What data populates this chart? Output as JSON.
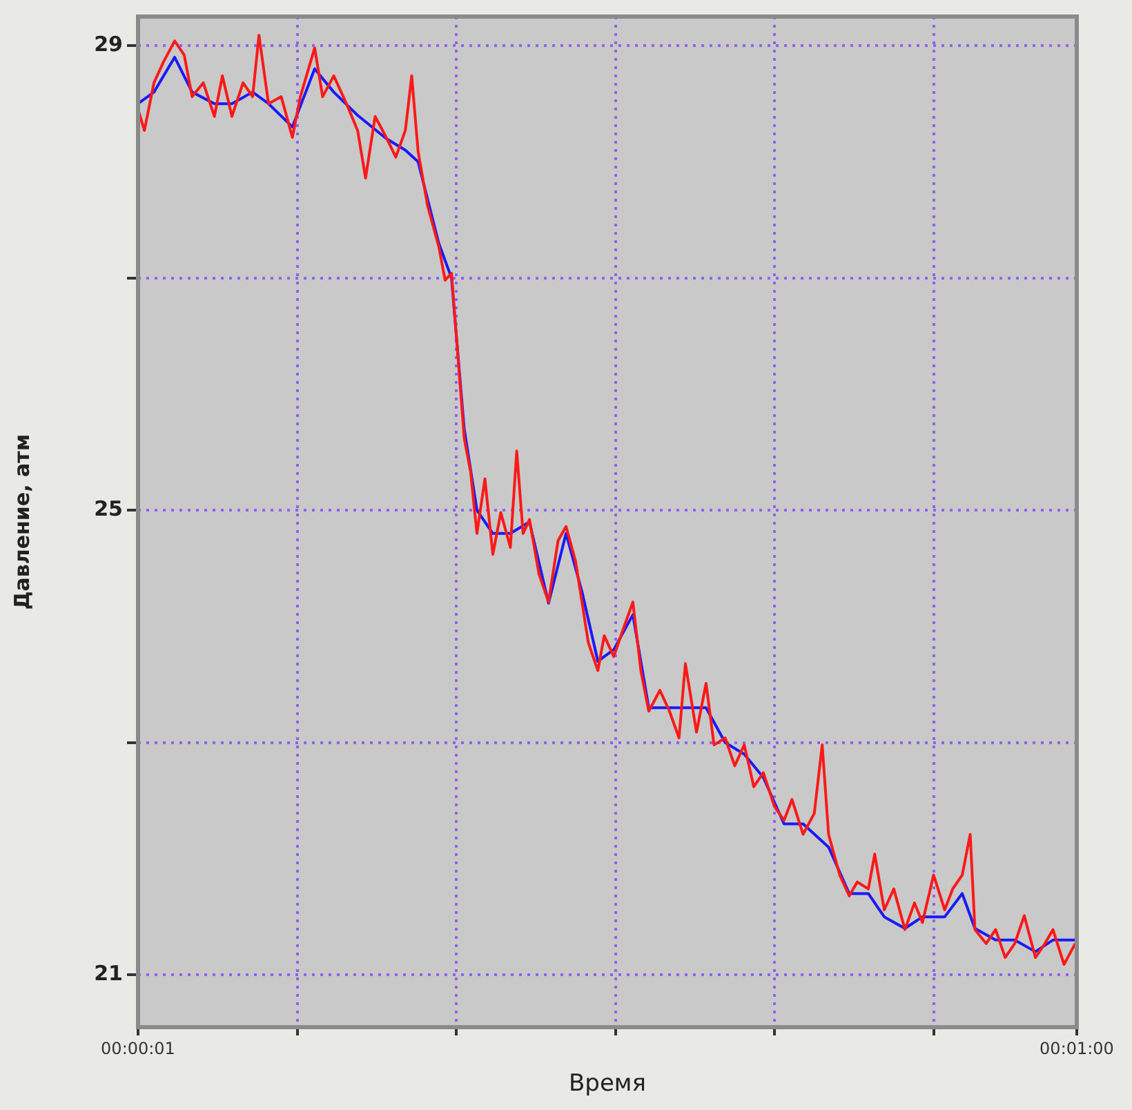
{
  "chart_data": {
    "type": "line",
    "xlabel": "Время",
    "ylabel": "Давление, атм",
    "xlim": [
      1,
      60
    ],
    "xticks": [
      {
        "value": 1,
        "label": "00:00:01"
      },
      {
        "value": 11,
        "label": null
      },
      {
        "value": 21,
        "label": null
      },
      {
        "value": 31,
        "label": null
      },
      {
        "value": 41,
        "label": null
      },
      {
        "value": 51,
        "label": null
      },
      {
        "value": 60,
        "label": "00:01:00"
      }
    ],
    "ylim": [
      20.55,
      29.25
    ],
    "yticks": [
      29,
      {
        "value": 27,
        "label": null
      },
      25,
      {
        "value": 23,
        "label": null
      },
      21
    ],
    "grid": true,
    "legend": false,
    "marker": "none",
    "line_style": "solid",
    "series": [
      {
        "color": "#ff1a1a",
        "x": [
          1.0,
          1.4,
          2.0,
          2.6,
          3.3,
          3.9,
          4.4,
          5.1,
          5.8,
          6.3,
          6.9,
          7.6,
          8.2,
          8.6,
          9.2,
          10.0,
          10.7,
          11.2,
          12.1,
          12.6,
          13.3,
          14.1,
          14.8,
          15.3,
          15.9,
          16.6,
          17.2,
          17.8,
          18.2,
          18.6,
          19.2,
          19.9,
          20.3,
          20.7,
          21.1,
          21.5,
          21.9,
          22.3,
          22.8,
          23.3,
          23.8,
          24.4,
          24.8,
          25.2,
          25.6,
          26.2,
          26.8,
          27.4,
          27.9,
          28.5,
          28.9,
          29.3,
          29.9,
          30.3,
          30.9,
          31.5,
          32.1,
          32.6,
          33.1,
          33.8,
          34.4,
          35.0,
          35.4,
          36.1,
          36.7,
          37.2,
          37.9,
          38.5,
          39.1,
          39.7,
          40.3,
          41.0,
          41.6,
          42.1,
          42.8,
          43.5,
          44.0,
          44.4,
          45.1,
          45.7,
          46.2,
          46.9,
          47.3,
          47.9,
          48.5,
          49.2,
          49.8,
          50.3,
          51.0,
          51.7,
          52.2,
          52.8,
          53.3,
          53.6,
          54.3,
          54.9,
          55.5,
          56.1,
          56.7,
          57.4,
          58.0,
          58.5,
          59.2,
          59.9
        ],
        "values": [
          28.45,
          28.27,
          28.68,
          28.86,
          29.04,
          28.92,
          28.56,
          28.68,
          28.39,
          28.74,
          28.39,
          28.68,
          28.56,
          29.09,
          28.5,
          28.56,
          28.21,
          28.56,
          28.98,
          28.56,
          28.74,
          28.5,
          28.27,
          27.86,
          28.39,
          28.21,
          28.04,
          28.27,
          28.74,
          28.09,
          27.62,
          27.27,
          26.98,
          27.04,
          26.33,
          25.62,
          25.33,
          24.8,
          25.27,
          24.62,
          24.98,
          24.68,
          25.51,
          24.8,
          24.92,
          24.45,
          24.21,
          24.74,
          24.86,
          24.56,
          24.21,
          23.86,
          23.62,
          23.92,
          23.74,
          23.98,
          24.21,
          23.62,
          23.27,
          23.45,
          23.27,
          23.04,
          23.68,
          23.09,
          23.51,
          22.98,
          23.04,
          22.8,
          22.98,
          22.62,
          22.74,
          22.45,
          22.33,
          22.51,
          22.21,
          22.39,
          22.98,
          22.21,
          21.86,
          21.68,
          21.8,
          21.74,
          22.04,
          21.56,
          21.74,
          21.39,
          21.62,
          21.45,
          21.86,
          21.56,
          21.74,
          21.86,
          22.21,
          21.39,
          21.27,
          21.39,
          21.15,
          21.27,
          21.51,
          21.15,
          21.27,
          21.39,
          21.09,
          21.27
        ]
      },
      {
        "color": "#1a1aff",
        "x": [
          1.0,
          2.0,
          3.3,
          4.4,
          5.8,
          6.9,
          8.2,
          9.2,
          10.7,
          12.1,
          13.3,
          14.8,
          16.6,
          17.8,
          18.6,
          19.9,
          20.7,
          21.5,
          22.3,
          23.3,
          24.4,
          25.6,
          26.8,
          27.9,
          28.9,
          29.9,
          30.9,
          32.1,
          33.1,
          34.4,
          35.4,
          36.7,
          37.9,
          39.1,
          40.3,
          41.6,
          42.8,
          44.4,
          45.7,
          46.9,
          47.9,
          49.2,
          50.3,
          51.7,
          52.8,
          53.6,
          54.9,
          56.1,
          57.4,
          58.5,
          59.9
        ],
        "values": [
          28.5,
          28.6,
          28.9,
          28.6,
          28.5,
          28.5,
          28.6,
          28.5,
          28.3,
          28.8,
          28.6,
          28.4,
          28.2,
          28.1,
          28.0,
          27.3,
          27.0,
          25.7,
          25.0,
          24.8,
          24.8,
          24.9,
          24.2,
          24.8,
          24.3,
          23.7,
          23.8,
          24.1,
          23.3,
          23.3,
          23.3,
          23.3,
          23.0,
          22.9,
          22.7,
          22.3,
          22.3,
          22.1,
          21.7,
          21.7,
          21.5,
          21.4,
          21.5,
          21.5,
          21.7,
          21.4,
          21.3,
          21.3,
          21.2,
          21.3,
          21.3
        ]
      }
    ]
  }
}
